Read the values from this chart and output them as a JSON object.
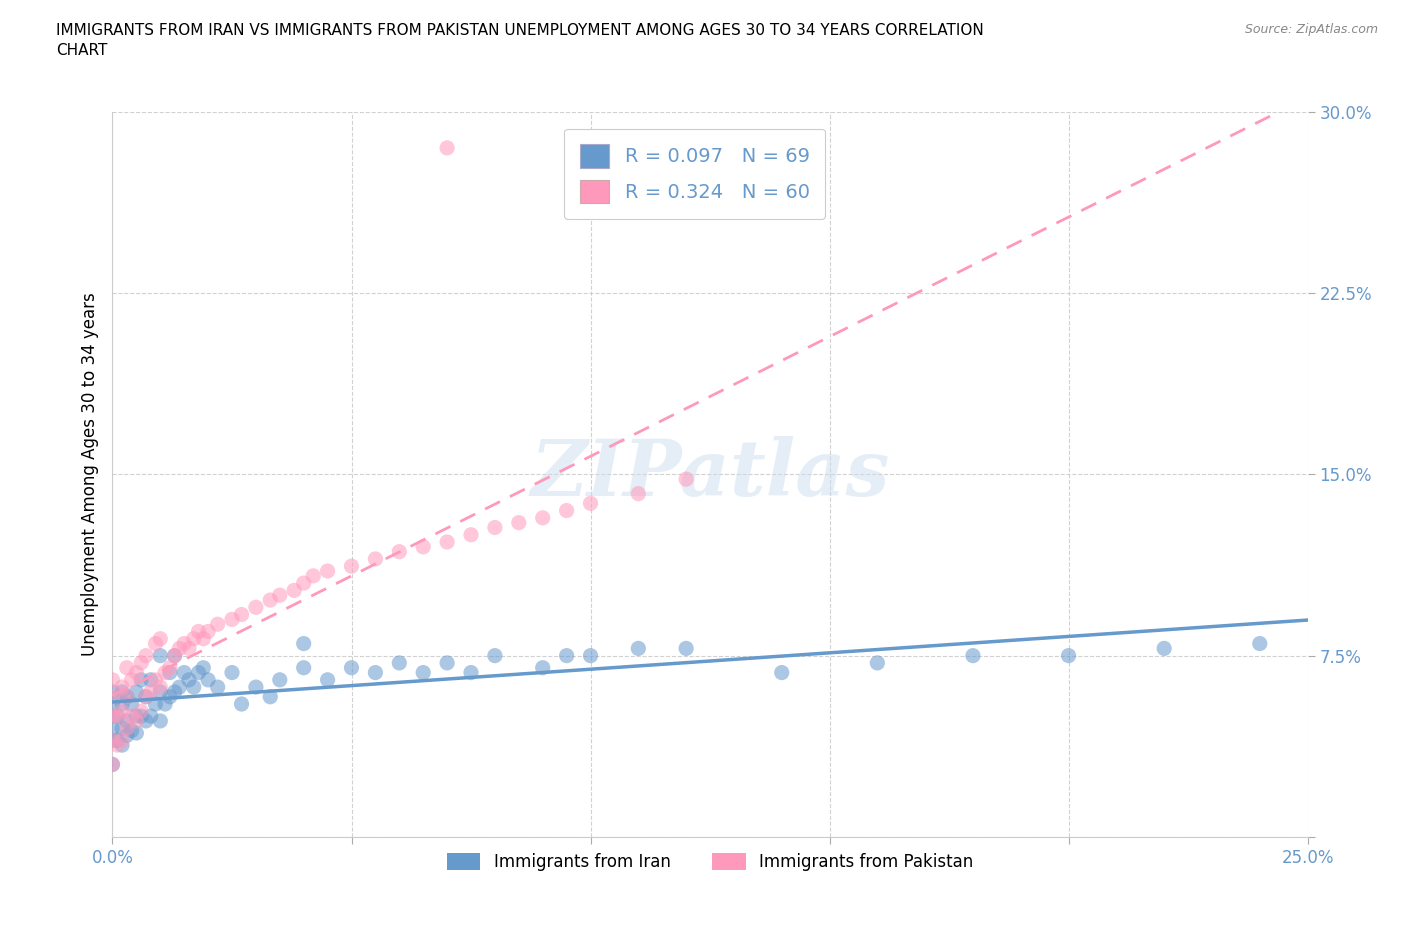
{
  "title": "IMMIGRANTS FROM IRAN VS IMMIGRANTS FROM PAKISTAN UNEMPLOYMENT AMONG AGES 30 TO 34 YEARS CORRELATION\nCHART",
  "source": "Source: ZipAtlas.com",
  "ylabel": "Unemployment Among Ages 30 to 34 years",
  "xlim": [
    0.0,
    0.25
  ],
  "ylim": [
    0.0,
    0.3
  ],
  "iran_color": "#6699cc",
  "pakistan_color": "#ff99bb",
  "iran_R": 0.097,
  "iran_N": 69,
  "pakistan_R": 0.324,
  "pakistan_N": 60,
  "legend_label_iran": "Immigrants from Iran",
  "legend_label_pakistan": "Immigrants from Pakistan",
  "watermark_text": "ZIPatlas",
  "iran_x": [
    0.0,
    0.0,
    0.0,
    0.0,
    0.0,
    0.0,
    0.001,
    0.001,
    0.002,
    0.002,
    0.002,
    0.002,
    0.003,
    0.003,
    0.003,
    0.004,
    0.004,
    0.005,
    0.005,
    0.005,
    0.006,
    0.006,
    0.007,
    0.007,
    0.008,
    0.008,
    0.009,
    0.01,
    0.01,
    0.01,
    0.011,
    0.012,
    0.012,
    0.013,
    0.013,
    0.014,
    0.015,
    0.016,
    0.017,
    0.018,
    0.019,
    0.02,
    0.022,
    0.025,
    0.027,
    0.03,
    0.033,
    0.035,
    0.04,
    0.04,
    0.045,
    0.05,
    0.055,
    0.06,
    0.065,
    0.07,
    0.075,
    0.08,
    0.09,
    0.095,
    0.1,
    0.11,
    0.12,
    0.14,
    0.16,
    0.18,
    0.2,
    0.22,
    0.24
  ],
  "iran_y": [
    0.03,
    0.04,
    0.045,
    0.05,
    0.055,
    0.06,
    0.04,
    0.05,
    0.038,
    0.045,
    0.055,
    0.06,
    0.042,
    0.048,
    0.058,
    0.044,
    0.055,
    0.043,
    0.05,
    0.06,
    0.05,
    0.065,
    0.048,
    0.058,
    0.05,
    0.065,
    0.055,
    0.048,
    0.06,
    0.075,
    0.055,
    0.058,
    0.068,
    0.06,
    0.075,
    0.062,
    0.068,
    0.065,
    0.062,
    0.068,
    0.07,
    0.065,
    0.062,
    0.068,
    0.055,
    0.062,
    0.058,
    0.065,
    0.07,
    0.08,
    0.065,
    0.07,
    0.068,
    0.072,
    0.068,
    0.072,
    0.068,
    0.075,
    0.07,
    0.075,
    0.075,
    0.078,
    0.078,
    0.068,
    0.072,
    0.075,
    0.075,
    0.078,
    0.08
  ],
  "pak_x": [
    0.0,
    0.0,
    0.0,
    0.0,
    0.0,
    0.001,
    0.001,
    0.002,
    0.002,
    0.002,
    0.003,
    0.003,
    0.003,
    0.004,
    0.004,
    0.005,
    0.005,
    0.006,
    0.006,
    0.007,
    0.007,
    0.008,
    0.009,
    0.009,
    0.01,
    0.01,
    0.011,
    0.012,
    0.013,
    0.014,
    0.015,
    0.016,
    0.017,
    0.018,
    0.019,
    0.02,
    0.022,
    0.025,
    0.027,
    0.03,
    0.033,
    0.035,
    0.038,
    0.04,
    0.042,
    0.045,
    0.05,
    0.055,
    0.06,
    0.065,
    0.07,
    0.075,
    0.08,
    0.085,
    0.09,
    0.095,
    0.1,
    0.11,
    0.12,
    0.07
  ],
  "pak_y": [
    0.03,
    0.04,
    0.05,
    0.058,
    0.065,
    0.038,
    0.05,
    0.04,
    0.052,
    0.062,
    0.045,
    0.058,
    0.07,
    0.05,
    0.065,
    0.048,
    0.068,
    0.052,
    0.072,
    0.058,
    0.075,
    0.06,
    0.065,
    0.08,
    0.062,
    0.082,
    0.068,
    0.07,
    0.075,
    0.078,
    0.08,
    0.078,
    0.082,
    0.085,
    0.082,
    0.085,
    0.088,
    0.09,
    0.092,
    0.095,
    0.098,
    0.1,
    0.102,
    0.105,
    0.108,
    0.11,
    0.112,
    0.115,
    0.118,
    0.12,
    0.122,
    0.125,
    0.128,
    0.13,
    0.132,
    0.135,
    0.138,
    0.142,
    0.148,
    0.285
  ],
  "xticklabels_pos": [
    0.0,
    0.05,
    0.1,
    0.15,
    0.2,
    0.25
  ],
  "xticklabels": [
    "0.0%",
    "",
    "",
    "",
    "",
    "25.0%"
  ],
  "yticklabels_pos": [
    0.0,
    0.075,
    0.15,
    0.225,
    0.3
  ],
  "yticklabels": [
    "",
    "7.5%",
    "15.0%",
    "22.5%",
    "30.0%"
  ]
}
